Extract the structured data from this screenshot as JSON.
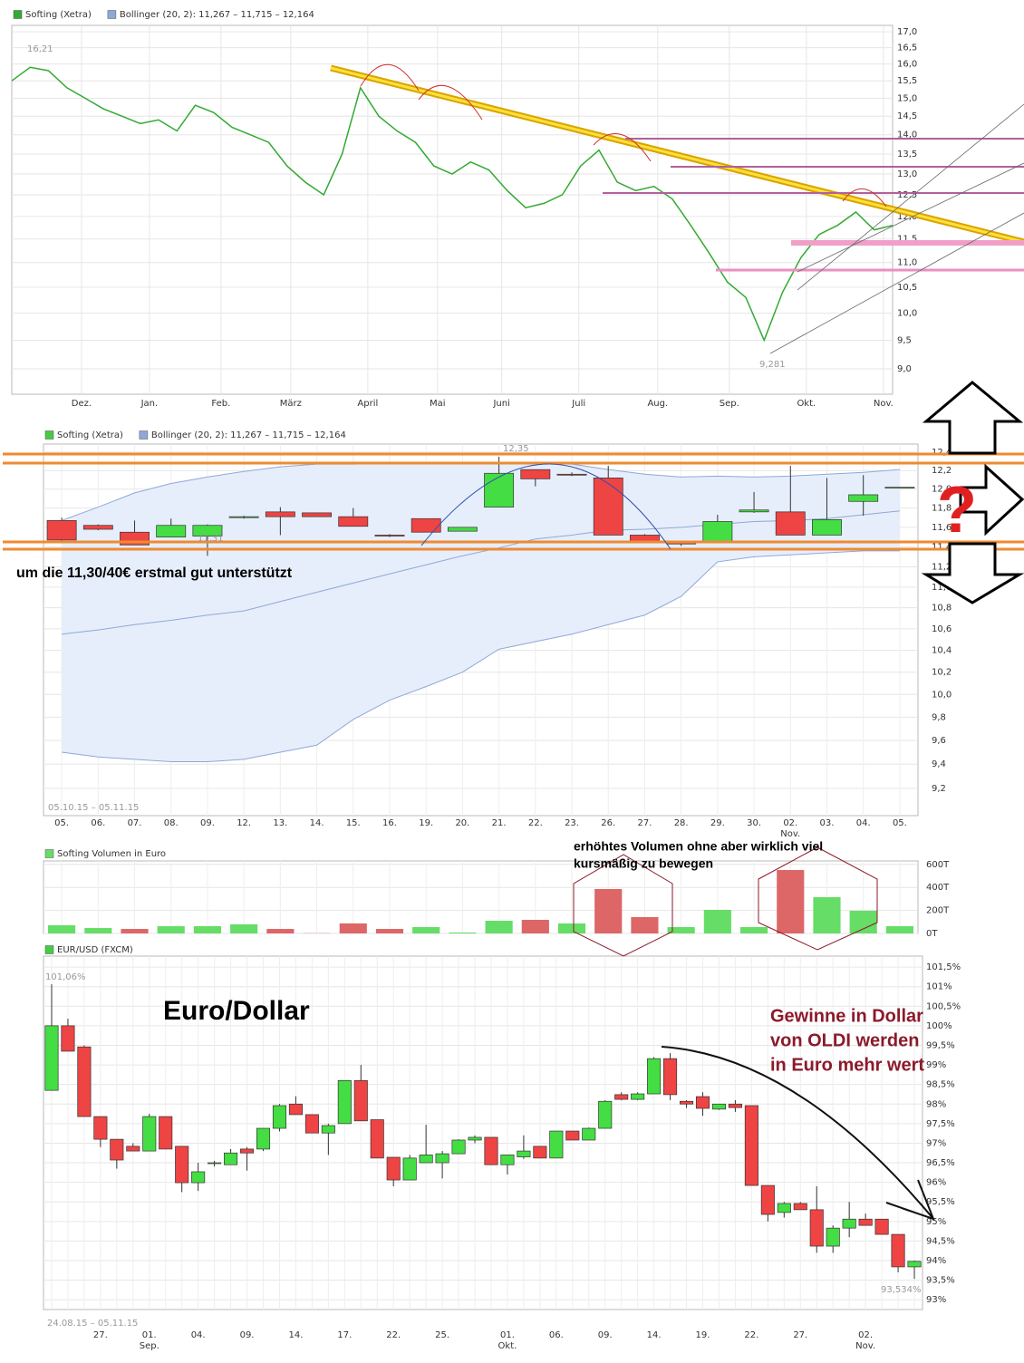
{
  "chart_data": [
    {
      "type": "line",
      "log": true,
      "series": [
        {
          "name": "Softing (Xetra)",
          "color": "#33aa33",
          "values": [
            15.5,
            15.9,
            15.8,
            15.3,
            15.0,
            14.7,
            14.5,
            14.3,
            14.4,
            14.1,
            14.8,
            14.6,
            14.2,
            14.0,
            13.8,
            13.2,
            12.8,
            12.5,
            13.5,
            15.3,
            14.5,
            14.1,
            13.8,
            13.2,
            13.0,
            13.3,
            13.1,
            12.6,
            12.2,
            12.3,
            12.5,
            13.2,
            13.6,
            12.8,
            12.6,
            12.7,
            12.4,
            11.8,
            11.2,
            10.6,
            10.3,
            9.5,
            10.4,
            11.1,
            11.6,
            11.8,
            12.1,
            11.7,
            11.8
          ]
        }
      ],
      "bollinger": {
        "label": "Bollinger (20, 2): 11,267 – 11,715 – 12,164",
        "color": "#8fa8d8"
      },
      "xlim": [
        0,
        48
      ],
      "xticks": [
        {
          "value": 3.8,
          "label": "Dez."
        },
        {
          "value": 7.5,
          "label": "Jan."
        },
        {
          "value": 11.4,
          "label": "Feb."
        },
        {
          "value": 15.2,
          "label": "März"
        },
        {
          "value": 19.4,
          "label": "April"
        },
        {
          "value": 23.2,
          "label": "Mai"
        },
        {
          "value": 26.7,
          "label": "Juni"
        },
        {
          "value": 30.9,
          "label": "Juli"
        },
        {
          "value": 35.2,
          "label": "Aug."
        },
        {
          "value": 39.1,
          "label": "Sep."
        },
        {
          "value": 43.3,
          "label": "Okt."
        },
        {
          "value": 47.5,
          "label": "Nov."
        }
      ],
      "ylim": [
        8.58,
        17.21
      ],
      "yticks": [
        {
          "value": 17.0,
          "label": "17,0"
        },
        {
          "value": 16.5,
          "label": "16,5"
        },
        {
          "value": 16.0,
          "label": "16,0"
        },
        {
          "value": 15.5,
          "label": "15,5"
        },
        {
          "value": 15.0,
          "label": "15,0"
        },
        {
          "value": 14.5,
          "label": "14,5"
        },
        {
          "value": 14.0,
          "label": "14,0"
        },
        {
          "value": 13.5,
          "label": "13,5"
        },
        {
          "value": 13.0,
          "label": "13,0"
        },
        {
          "value": 12.5,
          "label": "12,5"
        },
        {
          "value": 12.0,
          "label": "12,0"
        },
        {
          "value": 11.5,
          "label": "11,5"
        },
        {
          "value": 11.0,
          "label": "11,0"
        },
        {
          "value": 10.5,
          "label": "10,5"
        },
        {
          "value": 10.0,
          "label": "10,0"
        },
        {
          "value": 9.5,
          "label": "9,5"
        },
        {
          "value": 9.0,
          "label": "9,0"
        }
      ],
      "grid": true,
      "annotations": [
        "16,21",
        "9,281"
      ]
    },
    {
      "type": "candlestick",
      "log": true,
      "categories": [
        "05.",
        "06.",
        "07.",
        "08.",
        "09.",
        "12.",
        "13.",
        "14.",
        "15.",
        "16.",
        "19.",
        "20.",
        "21.",
        "22.",
        "23.",
        "26.",
        "27.",
        "28.",
        "29.",
        "30.",
        "02.\nNov.",
        "03.",
        "04.",
        "05."
      ],
      "series": [
        {
          "name": "Softing (Xetra)",
          "color": "#44cc44",
          "up_color": "#44dd44",
          "down_color": "#ee4444",
          "open": [
            11.67,
            11.62,
            11.55,
            11.5,
            11.51,
            11.7,
            11.76,
            11.75,
            11.71,
            11.52,
            11.69,
            11.56,
            11.81,
            12.21,
            12.16,
            12.12,
            11.52,
            11.45,
            11.44,
            11.76,
            11.76,
            11.52,
            11.87,
            12.02
          ],
          "high": [
            11.7,
            11.63,
            11.67,
            11.69,
            11.63,
            11.72,
            11.81,
            11.75,
            11.8,
            11.53,
            11.69,
            11.6,
            12.35,
            12.21,
            12.18,
            12.25,
            11.53,
            11.46,
            11.73,
            11.97,
            12.25,
            12.12,
            12.15,
            12.02
          ],
          "low": [
            11.44,
            11.57,
            11.42,
            11.5,
            11.31,
            11.69,
            11.52,
            11.71,
            11.61,
            11.5,
            11.55,
            11.56,
            11.81,
            12.03,
            12.14,
            11.52,
            11.46,
            11.41,
            11.44,
            11.75,
            11.52,
            11.52,
            11.72,
            12.02
          ],
          "close": [
            11.47,
            11.58,
            11.42,
            11.62,
            11.62,
            11.71,
            11.71,
            11.71,
            11.61,
            11.51,
            11.55,
            11.6,
            12.17,
            12.11,
            12.15,
            11.52,
            11.46,
            11.43,
            11.66,
            11.78,
            11.52,
            11.68,
            11.94,
            12.02
          ]
        }
      ],
      "bollinger": {
        "label": "Bollinger (20, 2): 11,267 – 11,715 – 12,164",
        "color": "#8fa8d8",
        "upper": [
          11.67,
          11.81,
          11.96,
          12.06,
          12.13,
          12.19,
          12.24,
          12.27,
          12.27,
          12.28,
          12.28,
          12.28,
          12.29,
          12.28,
          12.27,
          12.21,
          12.16,
          12.13,
          12.14,
          12.13,
          12.14,
          12.16,
          12.18,
          12.21
        ],
        "middle": [
          10.55,
          10.59,
          10.64,
          10.68,
          10.73,
          10.77,
          10.86,
          10.95,
          11.04,
          11.13,
          11.22,
          11.31,
          11.39,
          11.48,
          11.52,
          11.57,
          11.58,
          11.6,
          11.63,
          11.66,
          11.67,
          11.69,
          11.73,
          11.77
        ],
        "lower": [
          9.5,
          9.46,
          9.44,
          9.42,
          9.42,
          9.44,
          9.5,
          9.56,
          9.78,
          9.95,
          10.07,
          10.2,
          10.41,
          10.48,
          10.55,
          10.64,
          10.73,
          10.91,
          11.25,
          11.3,
          11.32,
          11.34,
          11.36,
          11.36
        ]
      },
      "ylim": [
        8.98,
        12.49
      ],
      "yticks": [
        {
          "value": 12.4,
          "label": "12,4"
        },
        {
          "value": 12.2,
          "label": "12,2"
        },
        {
          "value": 12.0,
          "label": "12,0"
        },
        {
          "value": 11.8,
          "label": "11,8"
        },
        {
          "value": 11.6,
          "label": "11,6"
        },
        {
          "value": 11.4,
          "label": "11,4"
        },
        {
          "value": 11.2,
          "label": "11,2"
        },
        {
          "value": 11.0,
          "label": "11,0"
        },
        {
          "value": 10.8,
          "label": "10,8"
        },
        {
          "value": 10.6,
          "label": "10,6"
        },
        {
          "value": 10.4,
          "label": "10,4"
        },
        {
          "value": 10.2,
          "label": "10,2"
        },
        {
          "value": 10.0,
          "label": "10,0"
        },
        {
          "value": 9.8,
          "label": "9,8"
        },
        {
          "value": 9.6,
          "label": "9,6"
        },
        {
          "value": 9.4,
          "label": "9,4"
        },
        {
          "value": 9.2,
          "label": "9,2"
        }
      ],
      "grid": true,
      "annotations": [
        "12,35",
        "11,31",
        "05.10.15 – 05.11.15",
        "um die 11,30/40€ erstmal gut unterstützt",
        "?"
      ]
    },
    {
      "type": "bar",
      "categories": [
        "05.",
        "06.",
        "07.",
        "08.",
        "09.",
        "12.",
        "13.",
        "14.",
        "15.",
        "16.",
        "19.",
        "20.",
        "21.",
        "22.",
        "23.",
        "26.",
        "27.",
        "28.",
        "29.",
        "30.",
        "02.\nNov.",
        "03.",
        "04.",
        "05."
      ],
      "show_categories": false,
      "series": [
        {
          "name": "Softing Volumen in Euro",
          "color": "#66dd66",
          "values": [
            71,
            47,
            39,
            63,
            63,
            79,
            39,
            2,
            87,
            39,
            55,
            8,
            110,
            118,
            87,
            386,
            142,
            55,
            205,
            55,
            551,
            315,
            197,
            63
          ],
          "colors": [
            "#66dd66",
            "#66dd66",
            "#dd6666",
            "#66dd66",
            "#66dd66",
            "#66dd66",
            "#dd6666",
            "#dd6666",
            "#dd6666",
            "#dd6666",
            "#66dd66",
            "#66dd66",
            "#66dd66",
            "#dd6666",
            "#66dd66",
            "#dd6666",
            "#dd6666",
            "#66dd66",
            "#66dd66",
            "#66dd66",
            "#dd6666",
            "#66dd66",
            "#66dd66",
            "#66dd66"
          ]
        }
      ],
      "ylim": [
        0,
        630
      ],
      "yticks": [
        {
          "value": 600,
          "label": "600T"
        },
        {
          "value": 400,
          "label": "400T"
        },
        {
          "value": 200,
          "label": "200T"
        },
        {
          "value": 0,
          "label": "0T"
        }
      ],
      "grid": true,
      "annotations": [
        "erhöhtes Volumen ohne aber wirklich viel",
        "kursmäßig zu bewegen"
      ]
    },
    {
      "type": "candlestick",
      "categories": [
        null,
        null,
        null,
        "27.",
        null,
        null,
        "01.\nSep.",
        null,
        null,
        "04.",
        null,
        null,
        "09.",
        null,
        null,
        "14.",
        null,
        null,
        "17.",
        null,
        null,
        "22.",
        null,
        null,
        "25.",
        null,
        null,
        null,
        "01.\nOkt.",
        null,
        null,
        "06.",
        null,
        null,
        "09.",
        null,
        null,
        "14.",
        null,
        null,
        "19.",
        null,
        null,
        "22.",
        null,
        null,
        "27.",
        null,
        null,
        null,
        "02.\nNov.",
        null,
        null,
        null
      ],
      "series": [
        {
          "name": "EUR/USD (FXCM)",
          "color": "#44cc44",
          "up_color": "#44dd44",
          "down_color": "#ee4444",
          "open": [
            98.35,
            100.0,
            99.46,
            97.68,
            97.1,
            96.92,
            96.8,
            97.68,
            96.92,
            95.99,
            96.5,
            96.45,
            96.85,
            96.85,
            97.38,
            98.0,
            97.73,
            97.26,
            97.5,
            98.6,
            97.6,
            96.64,
            96.06,
            96.5,
            96.5,
            96.73,
            97.08,
            97.15,
            96.45,
            96.65,
            96.92,
            96.62,
            97.31,
            97.08,
            97.38,
            98.24,
            98.12,
            98.26,
            99.16,
            98.07,
            98.19,
            97.87,
            98.0,
            97.96,
            95.92,
            95.23,
            95.46,
            95.3,
            94.37,
            94.83,
            95.06,
            95.06,
            94.67,
            93.84
          ],
          "high": [
            101.06,
            100.18,
            99.5,
            97.68,
            97.1,
            97.0,
            97.75,
            97.68,
            96.92,
            96.5,
            96.55,
            96.85,
            96.9,
            97.38,
            98.0,
            98.2,
            97.73,
            97.5,
            98.6,
            99.0,
            97.6,
            96.64,
            96.7,
            97.47,
            96.8,
            97.1,
            97.2,
            97.15,
            96.7,
            97.2,
            96.92,
            97.31,
            97.31,
            97.4,
            98.1,
            98.3,
            98.3,
            99.2,
            99.3,
            98.1,
            98.3,
            98.0,
            98.1,
            97.96,
            95.92,
            95.5,
            95.5,
            95.9,
            94.9,
            95.5,
            95.2,
            95.06,
            94.67,
            94.0
          ],
          "low": [
            98.35,
            99.35,
            97.68,
            96.9,
            96.35,
            96.8,
            96.8,
            96.85,
            95.75,
            95.78,
            96.4,
            96.45,
            96.3,
            96.8,
            97.3,
            97.73,
            97.26,
            96.7,
            97.5,
            97.57,
            96.62,
            95.9,
            96.06,
            96.5,
            96.1,
            96.73,
            97.0,
            96.45,
            96.2,
            96.6,
            96.62,
            96.62,
            97.08,
            97.08,
            97.38,
            98.1,
            98.1,
            98.26,
            98.1,
            97.9,
            97.7,
            97.85,
            97.8,
            95.92,
            95.0,
            95.1,
            95.3,
            94.2,
            94.2,
            94.6,
            94.9,
            94.67,
            93.7,
            93.534
          ],
          "close": [
            100.0,
            99.35,
            97.68,
            97.1,
            96.57,
            96.8,
            97.68,
            96.85,
            95.99,
            96.27,
            96.5,
            96.75,
            96.75,
            97.38,
            97.96,
            97.73,
            97.26,
            97.45,
            98.6,
            97.57,
            96.62,
            96.06,
            96.62,
            96.7,
            96.73,
            97.08,
            97.15,
            96.45,
            96.7,
            96.8,
            96.62,
            97.31,
            97.08,
            97.38,
            98.07,
            98.12,
            98.26,
            99.16,
            98.24,
            98.0,
            97.89,
            98.0,
            97.91,
            95.92,
            95.18,
            95.46,
            95.3,
            94.37,
            94.83,
            95.06,
            94.9,
            94.67,
            93.84,
            93.98
          ]
        }
      ],
      "ylim": [
        92.75,
        101.78
      ],
      "yticks": [
        {
          "value": 101.5,
          "label": "101,5%"
        },
        {
          "value": 101,
          "label": "101%"
        },
        {
          "value": 100.5,
          "label": "100,5%"
        },
        {
          "value": 100,
          "label": "100%"
        },
        {
          "value": 99.5,
          "label": "99,5%"
        },
        {
          "value": 99,
          "label": "99%"
        },
        {
          "value": 98.5,
          "label": "98,5%"
        },
        {
          "value": 98,
          "label": "98%"
        },
        {
          "value": 97.5,
          "label": "97,5%"
        },
        {
          "value": 97,
          "label": "97%"
        },
        {
          "value": 96.5,
          "label": "96,5%"
        },
        {
          "value": 96,
          "label": "96%"
        },
        {
          "value": 95.5,
          "label": "95,5%"
        },
        {
          "value": 95,
          "label": "95%"
        },
        {
          "value": 94.5,
          "label": "94,5%"
        },
        {
          "value": 94,
          "label": "94%"
        },
        {
          "value": 93.5,
          "label": "93,5%"
        },
        {
          "value": 93,
          "label": "93%"
        }
      ],
      "grid": true,
      "annotations": [
        "101,06%",
        "93,534%",
        "24.08.15 – 05.11.15",
        "Euro/Dollar",
        "Gewinne in Dollar",
        "von OLDI werden",
        "in Euro  mehr wert"
      ]
    }
  ]
}
